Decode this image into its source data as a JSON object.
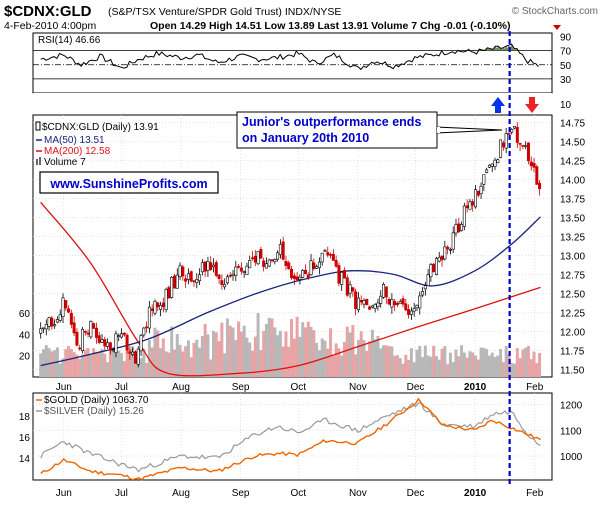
{
  "header": {
    "symbol": "$CDNX:GLD",
    "description": "(S&P/TSX Venture/SPDR Gold Trust) INDX/NYSE",
    "brand": "© StockCharts.com",
    "date": "4-Feb-2010 4:00pm",
    "quote": "Open 14.29  High 14.51  Low 13.89  Last 13.91  Volume 7  Chg -0.01 (-0.10%)"
  },
  "colors": {
    "price_up": "#000000",
    "price_down": "#cc0000",
    "ma50": "#1a237e",
    "ma200": "#dd1111",
    "volume_up": "#b8b8b8",
    "volume_down": "#e8a4a4",
    "gold": "#ee6600",
    "silver": "#999999",
    "annotation_text": "#0000cc",
    "arrow_up": "#0033ee",
    "arrow_down": "#ee2222",
    "marker_line": "#0000cc",
    "rsi_fill": "#6f8f5f",
    "panel_bg": "#ffffff"
  },
  "chart_data": [
    {
      "type": "line",
      "panel": "rsi",
      "title": "RSI(14) 46.66",
      "ylim": [
        10,
        95
      ],
      "yticks": [
        10,
        30,
        50,
        70,
        90
      ],
      "reference_lines": [
        30,
        50,
        70
      ],
      "x": [
        "2009-05-20",
        "2009-06-01",
        "2009-06-10",
        "2009-06-20",
        "2009-07-01",
        "2009-07-10",
        "2009-07-20",
        "2009-08-01",
        "2009-08-10",
        "2009-08-20",
        "2009-09-01",
        "2009-09-10",
        "2009-09-20",
        "2009-10-01",
        "2009-10-10",
        "2009-10-20",
        "2009-11-01",
        "2009-11-10",
        "2009-11-20",
        "2009-12-01",
        "2009-12-10",
        "2009-12-20",
        "2010-01-01",
        "2010-01-10",
        "2010-01-20",
        "2010-01-28",
        "2010-02-04"
      ],
      "values": [
        58,
        64,
        50,
        62,
        45,
        58,
        66,
        60,
        64,
        53,
        62,
        58,
        60,
        66,
        52,
        64,
        44,
        56,
        48,
        60,
        64,
        70,
        68,
        72,
        76,
        56,
        47
      ]
    },
    {
      "type": "candlestick",
      "panel": "price",
      "title": "$CDNX:GLD (Daily) 13.91",
      "legend": [
        {
          "name": "$CDNX:GLD (Daily) 13.91"
        },
        {
          "name": "MA(50) 13.51"
        },
        {
          "name": "MA(200) 12.58"
        },
        {
          "name": "Volume 7"
        }
      ],
      "ylim": [
        11.4,
        14.85
      ],
      "yticks": [
        11.5,
        11.75,
        12.0,
        12.25,
        12.5,
        12.75,
        13.0,
        13.25,
        13.5,
        13.75,
        14.0,
        14.25,
        14.5,
        14.75
      ],
      "volume_axis_ticks": [
        20,
        40,
        60
      ],
      "price_close": [
        [
          "2009-05-20",
          11.95
        ],
        [
          "2009-06-01",
          12.35
        ],
        [
          "2009-06-08",
          11.85
        ],
        [
          "2009-06-15",
          12.05
        ],
        [
          "2009-06-22",
          11.75
        ],
        [
          "2009-07-01",
          11.95
        ],
        [
          "2009-07-08",
          11.6
        ],
        [
          "2009-07-15",
          12.2
        ],
        [
          "2009-07-22",
          12.4
        ],
        [
          "2009-08-01",
          12.8
        ],
        [
          "2009-08-08",
          12.65
        ],
        [
          "2009-08-15",
          12.95
        ],
        [
          "2009-08-22",
          12.7
        ],
        [
          "2009-09-01",
          12.85
        ],
        [
          "2009-09-08",
          13.0
        ],
        [
          "2009-09-15",
          12.85
        ],
        [
          "2009-09-22",
          13.05
        ],
        [
          "2009-10-01",
          12.65
        ],
        [
          "2009-10-08",
          12.85
        ],
        [
          "2009-10-15",
          13.05
        ],
        [
          "2009-10-22",
          12.75
        ],
        [
          "2009-11-01",
          12.35
        ],
        [
          "2009-11-08",
          12.25
        ],
        [
          "2009-11-15",
          12.55
        ],
        [
          "2009-11-22",
          12.3
        ],
        [
          "2009-12-01",
          12.2
        ],
        [
          "2009-12-08",
          12.75
        ],
        [
          "2009-12-15",
          12.95
        ],
        [
          "2009-12-22",
          13.35
        ],
        [
          "2010-01-01",
          13.8
        ],
        [
          "2010-01-08",
          14.15
        ],
        [
          "2010-01-15",
          14.45
        ],
        [
          "2010-01-20",
          14.65
        ],
        [
          "2010-01-25",
          14.5
        ],
        [
          "2010-02-01",
          14.05
        ],
        [
          "2010-02-04",
          13.91
        ]
      ],
      "ma50": [
        [
          "2009-05-20",
          11.55
        ],
        [
          "2009-06-15",
          11.7
        ],
        [
          "2009-07-15",
          11.9
        ],
        [
          "2009-08-15",
          12.25
        ],
        [
          "2009-09-15",
          12.55
        ],
        [
          "2009-10-15",
          12.75
        ],
        [
          "2009-11-01",
          12.8
        ],
        [
          "2009-11-20",
          12.75
        ],
        [
          "2009-12-10",
          12.6
        ],
        [
          "2010-01-01",
          12.8
        ],
        [
          "2010-01-20",
          13.15
        ],
        [
          "2010-02-04",
          13.51
        ]
      ],
      "ma200": [
        [
          "2009-05-20",
          13.7
        ],
        [
          "2009-06-15",
          12.9
        ],
        [
          "2009-07-10",
          11.85
        ],
        [
          "2009-07-25",
          11.45
        ],
        [
          "2009-09-01",
          11.45
        ],
        [
          "2009-10-01",
          11.55
        ],
        [
          "2009-11-01",
          11.8
        ],
        [
          "2009-12-01",
          12.05
        ],
        [
          "2010-01-01",
          12.3
        ],
        [
          "2010-02-04",
          12.58
        ]
      ],
      "annotations": [
        {
          "text": "Junior's outperformance ends on January 20th 2010",
          "date": "2010-01-20"
        },
        {
          "text": "www.SunshineProfits.com"
        }
      ]
    },
    {
      "type": "line",
      "panel": "gold_silver",
      "series": [
        {
          "name": "$GOLD (Daily) 1063.70",
          "values": [
            [
              "2009-05-20",
              930
            ],
            [
              "2009-06-01",
              985
            ],
            [
              "2009-06-15",
              940
            ],
            [
              "2009-07-01",
              925
            ],
            [
              "2009-07-10",
              910
            ],
            [
              "2009-08-01",
              955
            ],
            [
              "2009-08-20",
              940
            ],
            [
              "2009-09-08",
              1000
            ],
            [
              "2009-09-20",
              1010
            ],
            [
              "2009-10-01",
              1005
            ],
            [
              "2009-10-15",
              1060
            ],
            [
              "2009-11-01",
              1050
            ],
            [
              "2009-11-15",
              1120
            ],
            [
              "2009-12-03",
              1220
            ],
            [
              "2009-12-15",
              1120
            ],
            [
              "2010-01-01",
              1100
            ],
            [
              "2010-01-10",
              1140
            ],
            [
              "2010-01-20",
              1110
            ],
            [
              "2010-01-28",
              1085
            ],
            [
              "2010-02-04",
              1063.7
            ]
          ]
        },
        {
          "name": "$SILVER (Daily) 15.26",
          "values": [
            [
              "2009-05-20",
              14.2
            ],
            [
              "2009-06-01",
              15.6
            ],
            [
              "2009-06-15",
              14.4
            ],
            [
              "2009-07-01",
              13.4
            ],
            [
              "2009-07-10",
              12.9
            ],
            [
              "2009-08-01",
              14.2
            ],
            [
              "2009-08-20",
              14.0
            ],
            [
              "2009-09-08",
              16.2
            ],
            [
              "2009-09-20",
              17.0
            ],
            [
              "2009-10-01",
              16.4
            ],
            [
              "2009-10-15",
              17.6
            ],
            [
              "2009-11-01",
              16.6
            ],
            [
              "2009-11-15",
              17.9
            ],
            [
              "2009-12-03",
              19.2
            ],
            [
              "2009-12-15",
              17.2
            ],
            [
              "2010-01-01",
              17.0
            ],
            [
              "2010-01-10",
              18.2
            ],
            [
              "2010-01-20",
              18.4
            ],
            [
              "2010-01-28",
              16.4
            ],
            [
              "2010-02-04",
              15.26
            ]
          ]
        }
      ],
      "y_left_ticks": [
        14,
        16,
        18
      ],
      "y_right_ticks": [
        1000,
        1100,
        1200
      ]
    }
  ],
  "x_axis_labels": [
    {
      "label": "Jun",
      "date": "2009-06-01"
    },
    {
      "label": "Jul",
      "date": "2009-07-01"
    },
    {
      "label": "Aug",
      "date": "2009-08-01"
    },
    {
      "label": "Sep",
      "date": "2009-09-01"
    },
    {
      "label": "Oct",
      "date": "2009-10-01"
    },
    {
      "label": "Nov",
      "date": "2009-11-01"
    },
    {
      "label": "Dec",
      "date": "2009-12-01"
    },
    {
      "label": "2010",
      "date": "2010-01-01"
    },
    {
      "label": "Feb",
      "date": "2010-02-01"
    }
  ],
  "marker_date": "2010-01-20"
}
